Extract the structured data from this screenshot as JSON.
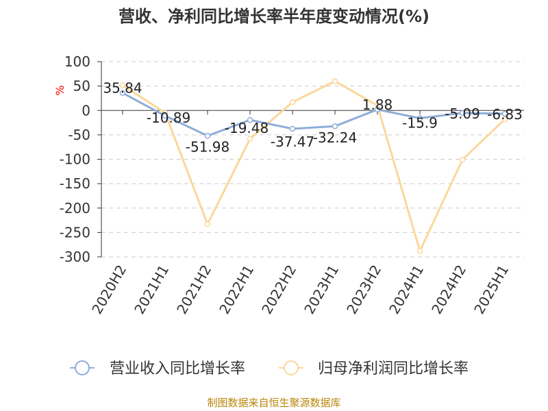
{
  "chart_data": {
    "type": "line",
    "title": "营收、净利同比增长率半年度变动情况(%)",
    "ylabel": "%",
    "xlabel": "",
    "categories": [
      "2020H2",
      "2021H1",
      "2021H2",
      "2022H1",
      "2022H2",
      "2023H1",
      "2023H2",
      "2024H1",
      "2024H2",
      "2025H1"
    ],
    "ylim": [
      -300,
      100
    ],
    "yticks": [
      100,
      50,
      0,
      -50,
      -100,
      -150,
      -200,
      -250,
      -300
    ],
    "grid": true,
    "legend_position": "bottom",
    "series": [
      {
        "name": "营业收入同比增长率",
        "color": "#8eacd8",
        "values": [
          35.84,
          -10.89,
          -51.98,
          -19.48,
          -37.47,
          -32.24,
          1.88,
          -15.9,
          -5.09,
          -6.83
        ],
        "labels": [
          "35.84",
          "-10.89",
          "-51.98",
          "-19.48",
          "-37.47",
          "-32.24",
          "1.88",
          "-15.9",
          "-5.09",
          "-6.83"
        ]
      },
      {
        "name": "归母净利润同比增长率",
        "color": "#fbd79a",
        "values": [
          52,
          -5,
          -233,
          -58,
          17,
          60,
          10,
          -288,
          -101,
          -18
        ]
      }
    ]
  },
  "source_text": "制图数据来自恒生聚源数据库"
}
